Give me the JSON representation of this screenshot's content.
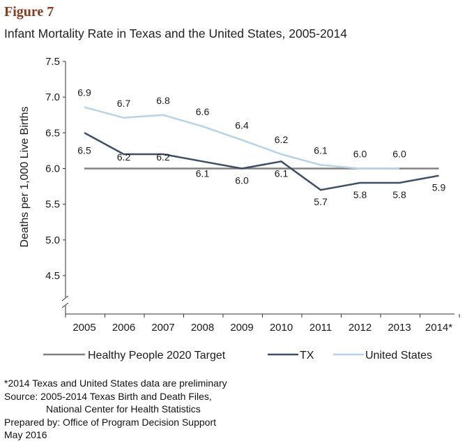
{
  "figure_label": "Figure 7",
  "chart_data": {
    "type": "line",
    "title": "Infant Mortality Rate in Texas and the United States, 2005-2014",
    "xlabel": "",
    "ylabel": "Deaths per 1,000 Live Births",
    "categories": [
      "2005",
      "2006",
      "2007",
      "2008",
      "2009",
      "2010",
      "2011",
      "2012",
      "2013",
      "2014*"
    ],
    "y_ticks": [
      "7.5",
      "7.0",
      "6.5",
      "6.0",
      "5.5",
      "5.0",
      "4.5"
    ],
    "ylim": [
      4.5,
      7.5
    ],
    "axis_break": true,
    "legend_position": "bottom",
    "series": [
      {
        "name": "Healthy People 2020 Target",
        "color": "#808080",
        "values": [
          6.0,
          6.0,
          6.0,
          6.0,
          6.0,
          6.0,
          6.0,
          6.0,
          6.0,
          6.0
        ],
        "labels": []
      },
      {
        "name": "TX",
        "color": "#3d4f66",
        "values": [
          6.5,
          6.2,
          6.2,
          6.1,
          6.0,
          6.1,
          5.7,
          5.8,
          5.8,
          5.9
        ],
        "labels": [
          "6.5",
          "6.2",
          "6.2",
          "6.1",
          "6.0",
          "6.1",
          "5.7",
          "5.8",
          "5.8",
          "5.9"
        ]
      },
      {
        "name": "United States",
        "color": "#b8d3e8",
        "values": [
          6.86,
          6.71,
          6.75,
          6.59,
          6.4,
          6.2,
          6.05,
          6.0,
          6.0,
          null
        ],
        "labels": [
          "6.9",
          "6.7",
          "6.8",
          "6.6",
          "6.4",
          "6.2",
          "6.1",
          "6.0",
          "6.0",
          null
        ]
      }
    ]
  },
  "notes": {
    "line1": "*2014 Texas and United States data are preliminary",
    "line2": "Source: 2005-2014 Texas Birth and Death Files,",
    "line3": "National Center for Health Statistics",
    "line4": "Prepared by: Office of Program Decision Support",
    "line5": "May 2016"
  }
}
